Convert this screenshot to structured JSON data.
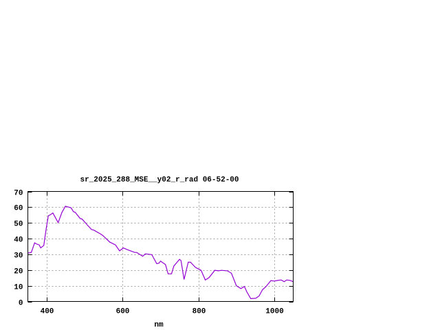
{
  "chart_data": {
    "type": "line",
    "title": "sr_2025_288_MSE__y02_r_rad 06-52-00",
    "xlabel": "nm",
    "ylabel": "",
    "xlim": [
      350,
      1050
    ],
    "ylim": [
      0,
      70
    ],
    "xticks": [
      400,
      600,
      800,
      1000
    ],
    "yticks": [
      0,
      10,
      20,
      30,
      40,
      50,
      60,
      70
    ],
    "grid": true,
    "legend": "none",
    "series": [
      {
        "color": "#9400d3",
        "x": [
          350,
          359,
          368,
          371,
          380,
          384,
          392,
          398,
          404,
          410,
          416,
          430,
          440,
          449,
          454,
          464,
          470,
          475,
          488,
          493,
          503,
          508,
          518,
          524,
          542,
          548,
          566,
          581,
          592,
          602,
          611,
          632,
          637,
          653,
          660,
          677,
          690,
          696,
          700,
          713,
          720,
          729,
          735,
          750,
          754,
          762,
          773,
          779,
          792,
          807,
          818,
          828,
          843,
          853,
          861,
          876,
          887,
          900,
          912,
          921,
          927,
          938,
          951,
          960,
          969,
          978,
          991,
          1000,
          1009,
          1018,
          1026,
          1033,
          1042,
          1050
        ],
        "y": [
          30.8,
          31.2,
          37.3,
          36.8,
          36,
          34.1,
          35.6,
          45.8,
          54.5,
          55.3,
          56.3,
          50.2,
          56.7,
          60.6,
          60.3,
          59.6,
          57.2,
          56.7,
          52.8,
          52.4,
          49.7,
          48.4,
          45.8,
          45.4,
          42.9,
          41.9,
          37.8,
          36,
          32.2,
          34.1,
          33.1,
          31.2,
          31.2,
          28.8,
          30.3,
          29.8,
          24,
          24.4,
          25.7,
          23.5,
          17.6,
          17.6,
          22.5,
          26.8,
          26,
          14,
          25,
          25,
          21.7,
          19.8,
          13.7,
          15.2,
          19.8,
          19.5,
          19.8,
          19.5,
          18,
          10,
          8.2,
          9.6,
          6.4,
          1.8,
          2,
          3.5,
          7.5,
          9.4,
          13.3,
          13,
          13.4,
          13.7,
          12.6,
          13.7,
          13.4,
          12.6
        ]
      }
    ]
  }
}
